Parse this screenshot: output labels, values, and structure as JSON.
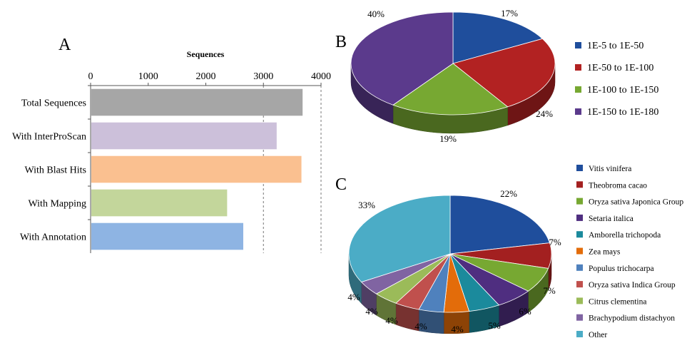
{
  "panels": {
    "a": "A",
    "b": "B",
    "c": "C"
  },
  "chart_data": [
    {
      "type": "bar",
      "orientation": "horizontal",
      "title": "Sequences",
      "categories": [
        "Total Sequences",
        "With InterProScan",
        "With Blast Hits",
        "With Mapping",
        "With Annotation"
      ],
      "values": [
        3680,
        3230,
        3660,
        2370,
        2650
      ],
      "colors": [
        "#a6a6a6",
        "#ccc0da",
        "#fac090",
        "#c3d69b",
        "#8eb4e3"
      ],
      "xlim": [
        0,
        4000
      ],
      "ticks": [
        0,
        1000,
        2000,
        3000,
        4000
      ],
      "grid": true,
      "gridlines": [
        3000,
        4000
      ]
    },
    {
      "type": "pie",
      "style": "3d",
      "slices": [
        {
          "label": "1E-5 to 1E-50",
          "value": 17,
          "pct": "17%",
          "color": "#1f4e9c"
        },
        {
          "label": "1E-50 to 1E-100",
          "value": 24,
          "pct": "24%",
          "color": "#b22222"
        },
        {
          "label": "1E-100 to 1E-150",
          "value": 19,
          "pct": "19%",
          "color": "#77a832"
        },
        {
          "label": "1E-150 to 1E-180",
          "value": 40,
          "pct": "40%",
          "color": "#5b3a8c"
        }
      ],
      "legend_position": "right"
    },
    {
      "type": "pie",
      "style": "3d",
      "slices": [
        {
          "label": "Vitis vinifera",
          "value": 22,
          "pct": "22%",
          "color": "#1f4e9c"
        },
        {
          "label": "Theobroma cacao",
          "value": 7,
          "pct": "7%",
          "color": "#a32020"
        },
        {
          "label": "Oryza sativa Japonica Group",
          "value": 7,
          "pct": "7%",
          "color": "#77a832"
        },
        {
          "label": "Setaria italica",
          "value": 6,
          "pct": "6%",
          "color": "#4f2e80"
        },
        {
          "label": "Amborella trichopoda",
          "value": 5,
          "pct": "5%",
          "color": "#1b8a9c"
        },
        {
          "label": "Zea mays",
          "value": 4,
          "pct": "4%",
          "color": "#e36c0a"
        },
        {
          "label": "Populus trichocarpa",
          "value": 4,
          "pct": "4%",
          "color": "#4f81bd"
        },
        {
          "label": "Oryza sativa Indica Group",
          "value": 4,
          "pct": "4%",
          "color": "#c0504d"
        },
        {
          "label": "Citrus clementina",
          "value": 4,
          "pct": "4%",
          "color": "#9bbb59"
        },
        {
          "label": "Brachypodium distachyon",
          "value": 4,
          "pct": "4%",
          "color": "#8064a2"
        },
        {
          "label": "Other",
          "value": 33,
          "pct": "33%",
          "color": "#4bacc6"
        }
      ],
      "legend_position": "right"
    }
  ]
}
